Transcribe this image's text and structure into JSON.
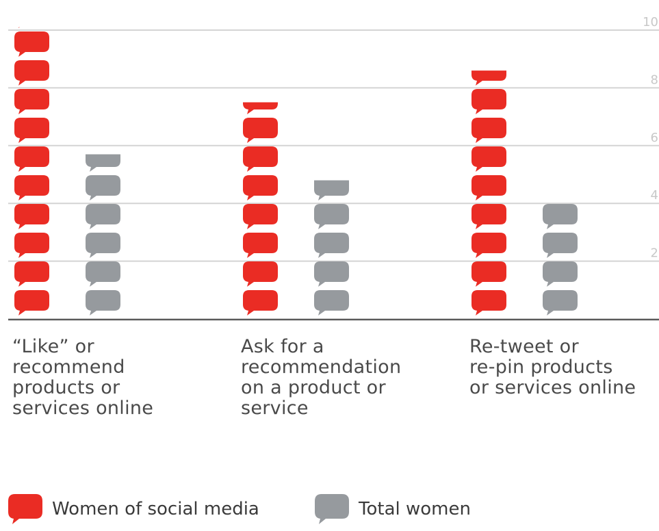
{
  "chart_data": {
    "type": "bar",
    "categories": [
      "“Like” or\nrecommend\nproducts or\nservices online",
      "Ask for a\nrecommendation\non a product or\nservice",
      "Re-tweet or\nre-pin products\nor services online"
    ],
    "series": [
      {
        "name": "Women of social media",
        "color": "#ea2c24",
        "values": [
          10.1,
          7.5,
          8.6
        ]
      },
      {
        "name": "Total women",
        "color": "#969a9e",
        "values": [
          5.7,
          4.8,
          4.0
        ]
      }
    ],
    "ylim": [
      0,
      10
    ],
    "y_ticks": [
      "2",
      "4",
      "6",
      "8",
      "10"
    ],
    "grid": true,
    "legend_position": "bottom-left",
    "mark_shape": "speech-bubble"
  }
}
